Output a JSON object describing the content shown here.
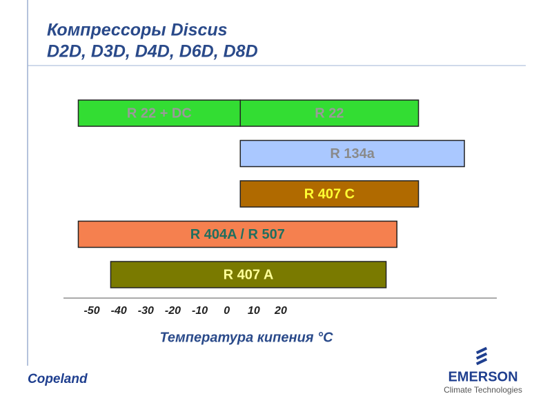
{
  "chart_data": {
    "type": "range_bar",
    "title_lines": [
      "Компрессоры Discus",
      "D2D, D3D, D4D, D6D, D8D"
    ],
    "x_label": "Температура кипения °C",
    "xlim": [
      -61,
      100
    ],
    "xticks": [
      -50,
      -40,
      -30,
      -20,
      -10,
      0,
      10,
      20
    ],
    "bars": [
      {
        "label": "R 22 + DC",
        "start": -55,
        "end": 5,
        "color": "#33dd33",
        "label_color": "#9a9a9a"
      },
      {
        "label": "R 22",
        "start": 5,
        "end": 71,
        "color": "#33dd33",
        "label_color": "#9a9a9a"
      },
      {
        "label": "R 134a",
        "start": 5,
        "end": 88,
        "color": "#aac8ff",
        "label_color": "#8a8a8a"
      },
      {
        "label": "R 407 C",
        "start": 5,
        "end": 71,
        "color": "#b06a00",
        "label_color": "#ffff33"
      },
      {
        "label": "R 404A / R 507",
        "start": -55,
        "end": 63,
        "color": "#f5804f",
        "label_color": "#1f6f5f"
      },
      {
        "label": "R 407 A",
        "start": -43,
        "end": 59,
        "color": "#7a7a00",
        "label_color": "#ffff99"
      }
    ]
  },
  "footer": {
    "left_logo": "Copeland",
    "right_logo": "EMERSON",
    "right_sub": "Climate Technologies"
  }
}
